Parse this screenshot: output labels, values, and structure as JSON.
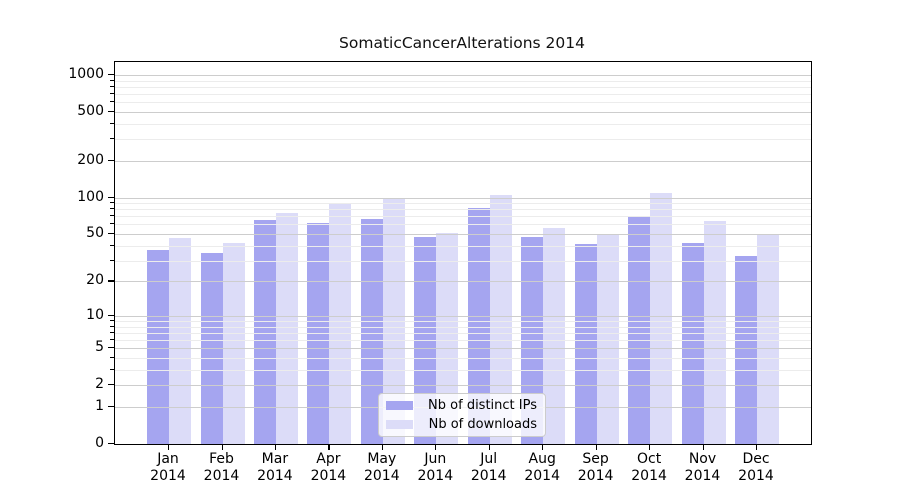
{
  "chart_data": {
    "type": "bar",
    "title": "SomaticCancerAlterations 2014",
    "categories": [
      "Jan",
      "Feb",
      "Mar",
      "Apr",
      "May",
      "Jun",
      "Jul",
      "Aug",
      "Sep",
      "Oct",
      "Nov",
      "Dec"
    ],
    "x_year": "2014",
    "series": [
      {
        "name": "Nb of distinct IPs",
        "color": "#a5a5f0",
        "values": [
          37,
          35,
          65,
          62,
          67,
          47,
          82,
          47,
          41,
          71,
          42,
          33
        ]
      },
      {
        "name": "Nb of downloads",
        "color": "#dcdcf8",
        "values": [
          46,
          42,
          75,
          90,
          98,
          51,
          105,
          56,
          50,
          108,
          64,
          50
        ]
      }
    ],
    "xlabel": "",
    "ylabel": "",
    "y_scale": "log10(value+1)",
    "y_major_ticks": [
      0,
      1,
      2,
      5,
      10,
      20,
      50,
      100,
      200,
      500,
      1000
    ],
    "y_minor_ticks": [
      3,
      4,
      6,
      7,
      8,
      9,
      30,
      40,
      60,
      70,
      80,
      90,
      300,
      400,
      600,
      700,
      800,
      900
    ],
    "ylim": [
      0,
      1290
    ],
    "grid": "horizontal, drawn over bars",
    "legend_position": "lower center"
  },
  "colors": {
    "bar_distinct_ips": "#a5a5f0",
    "bar_downloads": "#dcdcf8",
    "grid_major": "#cdcdcd",
    "grid_minor": "#ececec",
    "axis": "#000000",
    "background": "#ffffff",
    "legend_border": "#cccccc"
  }
}
